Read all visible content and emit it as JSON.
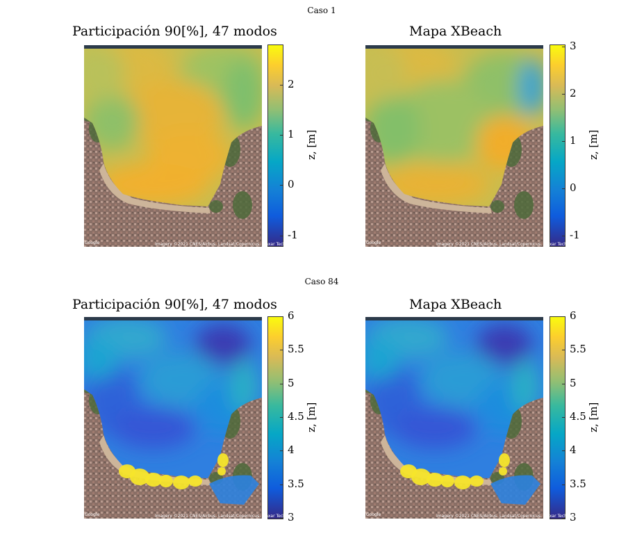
{
  "rows": [
    {
      "case_title": "Caso 1",
      "panels": [
        {
          "title": "Participación 90[%], 47 modos",
          "mode": "high"
        },
        {
          "title": "Mapa XBeach",
          "mode": "high"
        }
      ],
      "colorbars": [
        {
          "ticks": [
            "2",
            "1",
            "0",
            "-1"
          ],
          "label": "z, [m]"
        },
        {
          "ticks": [
            "3",
            "2",
            "1",
            "0",
            "-1"
          ],
          "label": "z, [m]"
        }
      ]
    },
    {
      "case_title": "Caso 84",
      "panels": [
        {
          "title": "Participación 90[%], 47 modos",
          "mode": "low"
        },
        {
          "title": "Mapa XBeach",
          "mode": "low"
        }
      ],
      "colorbars": [
        {
          "ticks": [
            "6",
            "5.5",
            "5",
            "4.5",
            "4",
            "3.5",
            "3"
          ],
          "label": "z, [m]"
        },
        {
          "ticks": [
            "6",
            "5.5",
            "5",
            "4.5",
            "4",
            "3.5",
            "3"
          ],
          "label": "z, [m]"
        }
      ]
    }
  ],
  "attribution": {
    "google": "Google",
    "imagery": "Imagery ©2021 CNES/Airbus, Landsat/Copernicus, Maxar Technologies, Map data ©2021"
  },
  "chart_data": [
    {
      "type": "heatmap",
      "title": "Participación 90[%], 47 modos",
      "colorbar_label": "z, [m]",
      "colorbar_ticks": [
        2,
        1,
        0,
        -1
      ],
      "clim": [
        -1.2,
        2.8
      ],
      "colormap": "parula"
    },
    {
      "type": "heatmap",
      "title": "Mapa XBeach",
      "colorbar_label": "z, [m]",
      "colorbar_ticks": [
        3,
        2,
        1,
        0,
        -1
      ],
      "clim": [
        -1.2,
        3.05
      ],
      "colormap": "parula"
    },
    {
      "type": "heatmap",
      "title": "Participación 90[%], 47 modos",
      "colorbar_label": "z, [m]",
      "colorbar_ticks": [
        6,
        5.5,
        5,
        4.5,
        4,
        3.5,
        3
      ],
      "clim": [
        3,
        6
      ],
      "colormap": "parula"
    },
    {
      "type": "heatmap",
      "title": "Mapa XBeach",
      "colorbar_label": "z, [m]",
      "colorbar_ticks": [
        6,
        5.5,
        5,
        4.5,
        4,
        3.5,
        3
      ],
      "clim": [
        3,
        6
      ],
      "colormap": "parula"
    }
  ]
}
